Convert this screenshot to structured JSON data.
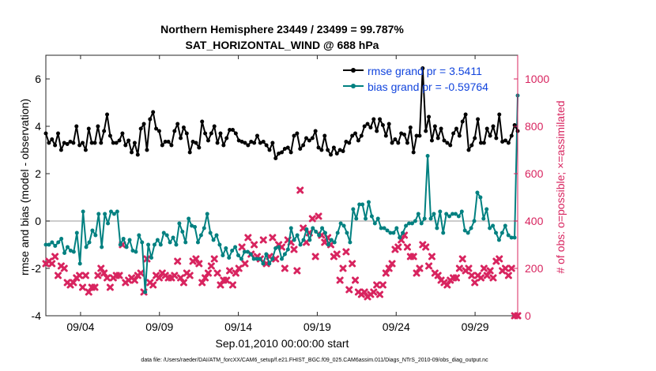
{
  "chart_data": {
    "type": "line",
    "title": "Northern Hemisphere 23449 / 23499 = 99.787%",
    "subtitle": "SAT_HORIZONTAL_WIND @ 688 hPa",
    "xlabel": "Sep.01,2010 00:00:00 start",
    "ylabel_left": "rmse and bias (model - observation)",
    "ylabel_right": "# of obs: o=possible; ×=assimilated",
    "footnote": "data file: /Users/raeder/DAI/ATM_forcXX/CAM6_setup/f.e21.FHIST_BGC.f09_025.CAM6assim.011/Diags_NTrS_2010-09/obs_diag_output.nc",
    "x_range_days": [
      0.8,
      30.7
    ],
    "ylim_left": [
      -4,
      7
    ],
    "ylim_right": [
      0,
      1100
    ],
    "x_ticks": [
      {
        "day": 3,
        "label": "09/04"
      },
      {
        "day": 8,
        "label": "09/09"
      },
      {
        "day": 13,
        "label": "09/14"
      },
      {
        "day": 18,
        "label": "09/19"
      },
      {
        "day": 23,
        "label": "09/24"
      },
      {
        "day": 28,
        "label": "09/29"
      }
    ],
    "y_ticks_left": [
      -4,
      -2,
      0,
      2,
      4,
      6
    ],
    "y_ticks_right": [
      0,
      200,
      400,
      600,
      800,
      1000
    ],
    "grid": false,
    "legend_position": "top-right",
    "colors": {
      "rmse": "#000000",
      "bias": "#008080",
      "obs": "#d8245f",
      "zero_line": "#bbbbbb"
    },
    "series": [
      {
        "name": "rmse grand pr = 3.5411",
        "axis": "left",
        "values": [
          3.7,
          3.3,
          3.45,
          3.2,
          3.7,
          3.0,
          3.3,
          3.25,
          3.35,
          3.3,
          4.0,
          3.2,
          3.3,
          3.0,
          3.9,
          3.3,
          3.3,
          4.0,
          3.3,
          3.8,
          4.5,
          3.6,
          3.3,
          3.3,
          3.4,
          3.7,
          3.2,
          3.4,
          2.9,
          3.3,
          2.8,
          3.9,
          4.1,
          3.0,
          4.3,
          4.6,
          3.9,
          3.8,
          3.2,
          3.35,
          3.35,
          3.2,
          3.8,
          4.1,
          3.5,
          3.95,
          3.7,
          2.9,
          3.35,
          3.3,
          3.1,
          4.2,
          3.7,
          3.4,
          3.7,
          4.0,
          3.3,
          3.7,
          3.2,
          3.5,
          3.85,
          3.85,
          3.7,
          3.4,
          3.35,
          3.3,
          3.2,
          3.35,
          3.3,
          3.6,
          3.3,
          3.35,
          3.2,
          3.0,
          3.3,
          2.65,
          2.85,
          2.9,
          3.05,
          3.1,
          2.9,
          3.6,
          3.7,
          3.05,
          3.2,
          3.5,
          3.4,
          3.5,
          3.8,
          3.1,
          3.0,
          3.6,
          3.0,
          2.8,
          3.1,
          2.85,
          3.0,
          2.95,
          3.35,
          3.3,
          3.6,
          3.7,
          3.4,
          3.6,
          4.0,
          4.1,
          3.95,
          4.3,
          3.8,
          4.3,
          4.05,
          3.6,
          4.1,
          3.3,
          3.45,
          3.3,
          3.7,
          3.65,
          3.3,
          3.95,
          2.9,
          3.6,
          3.6,
          6.45,
          3.8,
          4.4,
          3.4,
          4.0,
          3.5,
          3.9,
          3.4,
          3.3,
          3.2,
          3.7,
          3.9,
          3.6,
          4.2,
          4.5,
          3.0,
          3.2,
          3.5,
          4.3,
          3.3,
          3.3,
          3.9,
          3.6,
          4.0,
          3.5,
          4.5,
          3.35,
          3.4,
          3.3,
          3.6,
          4.05,
          3.8
        ]
      },
      {
        "name": "bias grand pr = -0.59764",
        "axis": "left",
        "values": [
          -1.0,
          -1.0,
          -0.9,
          -1.05,
          -0.9,
          -0.75,
          -1.35,
          -1.1,
          -1.25,
          -1.3,
          -0.5,
          -1.8,
          0.4,
          -1.1,
          -0.9,
          -0.4,
          -0.6,
          0.3,
          -1.1,
          0.3,
          -0.1,
          0.4,
          0.3,
          0.4,
          -1.0,
          -0.75,
          -1.1,
          -0.8,
          -1.25,
          -1.3,
          -0.6,
          -0.9,
          -3.0,
          -1.0,
          -1.55,
          -1.0,
          -0.8,
          -1.0,
          -0.5,
          -0.6,
          -0.9,
          -0.7,
          -1.0,
          -0.1,
          -0.45,
          -0.9,
          0.1,
          -0.2,
          -0.25,
          -0.9,
          -0.6,
          -0.3,
          0.3,
          -0.5,
          -0.8,
          -0.6,
          -1.0,
          -1.45,
          -1.15,
          -1.55,
          -1.25,
          -1.1,
          -1.45,
          -1.6,
          -1.3,
          -1.3,
          -1.4,
          -1.6,
          -1.6,
          -1.6,
          -1.8,
          -1.4,
          -1.8,
          -1.6,
          -1.15,
          -1.1,
          -1.6,
          -1.4,
          -1.2,
          -0.3,
          -0.8,
          -0.6,
          -1.0,
          -0.8,
          -0.35,
          -0.8,
          -0.3,
          -0.45,
          -0.6,
          -0.3,
          -0.5,
          -1.0,
          -0.8,
          -0.9,
          -0.5,
          -0.1,
          -0.2,
          -0.5,
          -0.9,
          0.5,
          0.1,
          0.7,
          0.7,
          0.1,
          0.8,
          0.2,
          -0.1,
          0.1,
          -0.3,
          -0.3,
          -0.4,
          -0.5,
          -0.5,
          -0.3,
          -0.7,
          -0.5,
          -0.2,
          -0.1,
          -0.1,
          0.0,
          0.3,
          -0.1,
          0.1,
          2.75,
          0.1,
          0.3,
          -0.3,
          0.4,
          -0.5,
          0.3,
          0.2,
          0.3,
          0.3,
          0.2,
          0.4,
          -0.4,
          -0.5,
          -0.3,
          0.0,
          1.2,
          1.0,
          0.1,
          0.5,
          -0.3,
          -0.2,
          -0.5,
          -0.8,
          -0.5,
          -0.2,
          -0.6,
          -0.7,
          -0.7,
          5.3
        ]
      },
      {
        "name": "assimilated",
        "axis": "right",
        "values": [
          220,
          230,
          220,
          250,
          170,
          210,
          200,
          140,
          130,
          140,
          160,
          170,
          120,
          170,
          100,
          120,
          120,
          170,
          200,
          180,
          160,
          120,
          160,
          170,
          170,
          300,
          140,
          150,
          160,
          150,
          170,
          180,
          100,
          240,
          140,
          130,
          170,
          160,
          180,
          170,
          160,
          160,
          170,
          230,
          160,
          140,
          180,
          170,
          230,
          240,
          220,
          140,
          160,
          180,
          210,
          240,
          180,
          130,
          150,
          150,
          190,
          130,
          180,
          200,
          290,
          220,
          330,
          260,
          300,
          250,
          240,
          320,
          220,
          250,
          330,
          240,
          300,
          290,
          200,
          320,
          310,
          280,
          190,
          530,
          370,
          310,
          350,
          410,
          250,
          420,
          340,
          310,
          330,
          300,
          250,
          260,
          150,
          200,
          270,
          110,
          220,
          150,
          100,
          90,
          100,
          80,
          90,
          100,
          130,
          90,
          130,
          180,
          200,
          220,
          280,
          290,
          320,
          340,
          290,
          250,
          250,
          180,
          200,
          300,
          290,
          210,
          250,
          180,
          170,
          150,
          140,
          130,
          150,
          160,
          160,
          200,
          240,
          190,
          200,
          170,
          140,
          170,
          160,
          200,
          170,
          190,
          160,
          230,
          240,
          190,
          200,
          170,
          200,
          0,
          0
        ]
      }
    ]
  }
}
